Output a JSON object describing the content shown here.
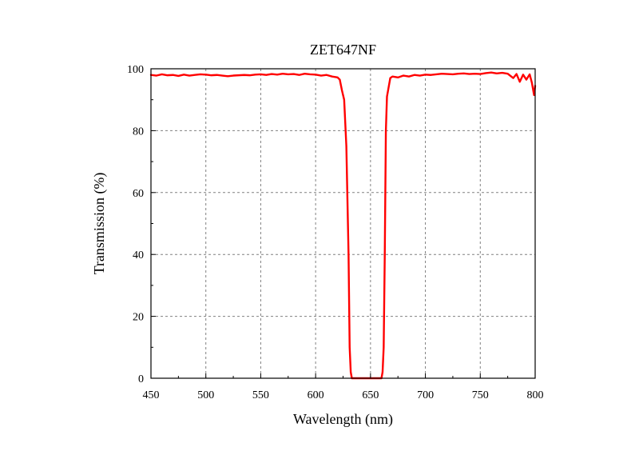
{
  "chart_data": {
    "type": "line",
    "title": "ZET647NF",
    "xlabel": "Wavelength (nm)",
    "ylabel": "Transmission (%)",
    "xlim": [
      450,
      800
    ],
    "ylim": [
      0,
      100
    ],
    "x_ticks": [
      450,
      500,
      550,
      600,
      650,
      700,
      750,
      800
    ],
    "y_ticks": [
      0,
      20,
      40,
      60,
      80,
      100
    ],
    "grid": true,
    "series": [
      {
        "color": "#ff0000",
        "x": [
          450,
          455,
          460,
          465,
          470,
          475,
          480,
          485,
          490,
          495,
          500,
          505,
          510,
          515,
          520,
          525,
          530,
          535,
          540,
          545,
          550,
          555,
          560,
          565,
          570,
          575,
          580,
          585,
          590,
          595,
          600,
          605,
          610,
          615,
          620,
          622,
          624,
          626,
          628,
          630,
          631,
          632,
          633,
          640,
          650,
          655,
          660,
          661,
          662,
          663,
          664,
          665,
          666,
          668,
          670,
          675,
          680,
          685,
          690,
          695,
          700,
          705,
          710,
          715,
          720,
          725,
          730,
          735,
          740,
          745,
          750,
          755,
          760,
          765,
          770,
          775,
          780,
          783,
          786,
          789,
          792,
          795,
          797,
          799,
          800
        ],
        "y": [
          98,
          97.8,
          98.2,
          97.9,
          98,
          97.7,
          98.1,
          97.8,
          98,
          98.2,
          98.1,
          97.9,
          98,
          97.8,
          97.6,
          97.8,
          97.9,
          98,
          97.9,
          98.1,
          98.2,
          98,
          98.3,
          98.1,
          98.4,
          98.2,
          98.3,
          98,
          98.4,
          98.2,
          98.1,
          97.8,
          98,
          97.5,
          97.2,
          96.5,
          93,
          90,
          75,
          40,
          10,
          2,
          0,
          0,
          0,
          0,
          0,
          2,
          10,
          40,
          80,
          91,
          93,
          97,
          97.5,
          97.2,
          97.8,
          97.5,
          98,
          97.8,
          98.1,
          98,
          98.2,
          98.4,
          98.3,
          98.2,
          98.4,
          98.5,
          98.3,
          98.4,
          98.3,
          98.6,
          98.8,
          98.5,
          98.7,
          98.4,
          97,
          98.3,
          95.8,
          98.1,
          96.5,
          98.2,
          95.5,
          91.5,
          94.5
        ]
      }
    ]
  }
}
